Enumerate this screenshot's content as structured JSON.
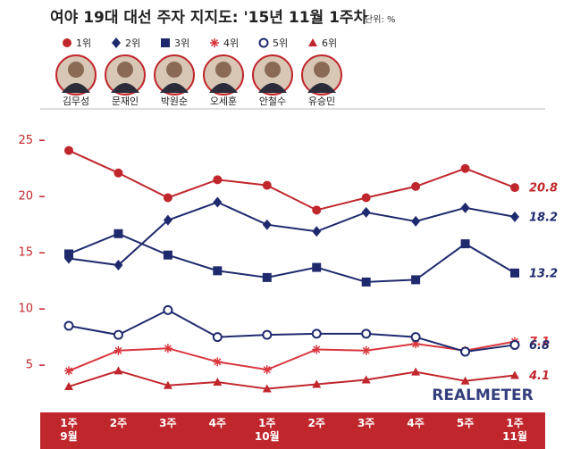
{
  "chart_data": {
    "type": "line",
    "title": "여야 19대 대선 주자 지지도: '15년 11월 1주차",
    "unit": "단위: %",
    "watermark": "REALMETER",
    "categories": [
      "1주\n9월",
      "2주",
      "3주",
      "4주",
      "1주\n10월",
      "2주",
      "3주",
      "4주",
      "5주",
      "1주\n11월"
    ],
    "ylim": [
      0.8,
      27.8
    ],
    "yticks": [
      5,
      10,
      15,
      20,
      25
    ],
    "grid": false,
    "series": [
      {
        "name": "1위",
        "person": "김무성",
        "marker": "circle",
        "color": "#c0272d",
        "values": [
          24.1,
          22.1,
          19.9,
          21.5,
          21.0,
          18.8,
          19.9,
          20.9,
          22.5,
          20.8
        ]
      },
      {
        "name": "2위",
        "person": "문재인",
        "marker": "diamond",
        "color": "#1f2a6e",
        "values": [
          14.5,
          13.9,
          17.9,
          19.5,
          17.5,
          16.9,
          18.6,
          17.8,
          19.0,
          18.2
        ]
      },
      {
        "name": "3위",
        "person": "박원순",
        "marker": "square",
        "color": "#1f2a6e",
        "values": [
          14.9,
          16.7,
          14.8,
          13.4,
          12.8,
          13.7,
          12.4,
          12.6,
          15.8,
          13.2
        ]
      },
      {
        "name": "4위",
        "person": "오세훈",
        "marker": "asterisk",
        "color": "#d9363e",
        "values": [
          4.5,
          6.3,
          6.5,
          5.3,
          4.6,
          6.4,
          6.3,
          6.9,
          6.3,
          7.1
        ]
      },
      {
        "name": "5위",
        "person": "안철수",
        "marker": "open-circle",
        "color": "#1f2a6e",
        "values": [
          8.5,
          7.7,
          9.9,
          7.5,
          7.7,
          7.8,
          7.8,
          7.5,
          6.2,
          6.8
        ]
      },
      {
        "name": "6위",
        "person": "유승민",
        "marker": "triangle",
        "color": "#c0272d",
        "values": [
          3.1,
          4.5,
          3.2,
          3.5,
          2.9,
          3.3,
          3.7,
          4.4,
          3.6,
          4.1
        ]
      }
    ]
  }
}
